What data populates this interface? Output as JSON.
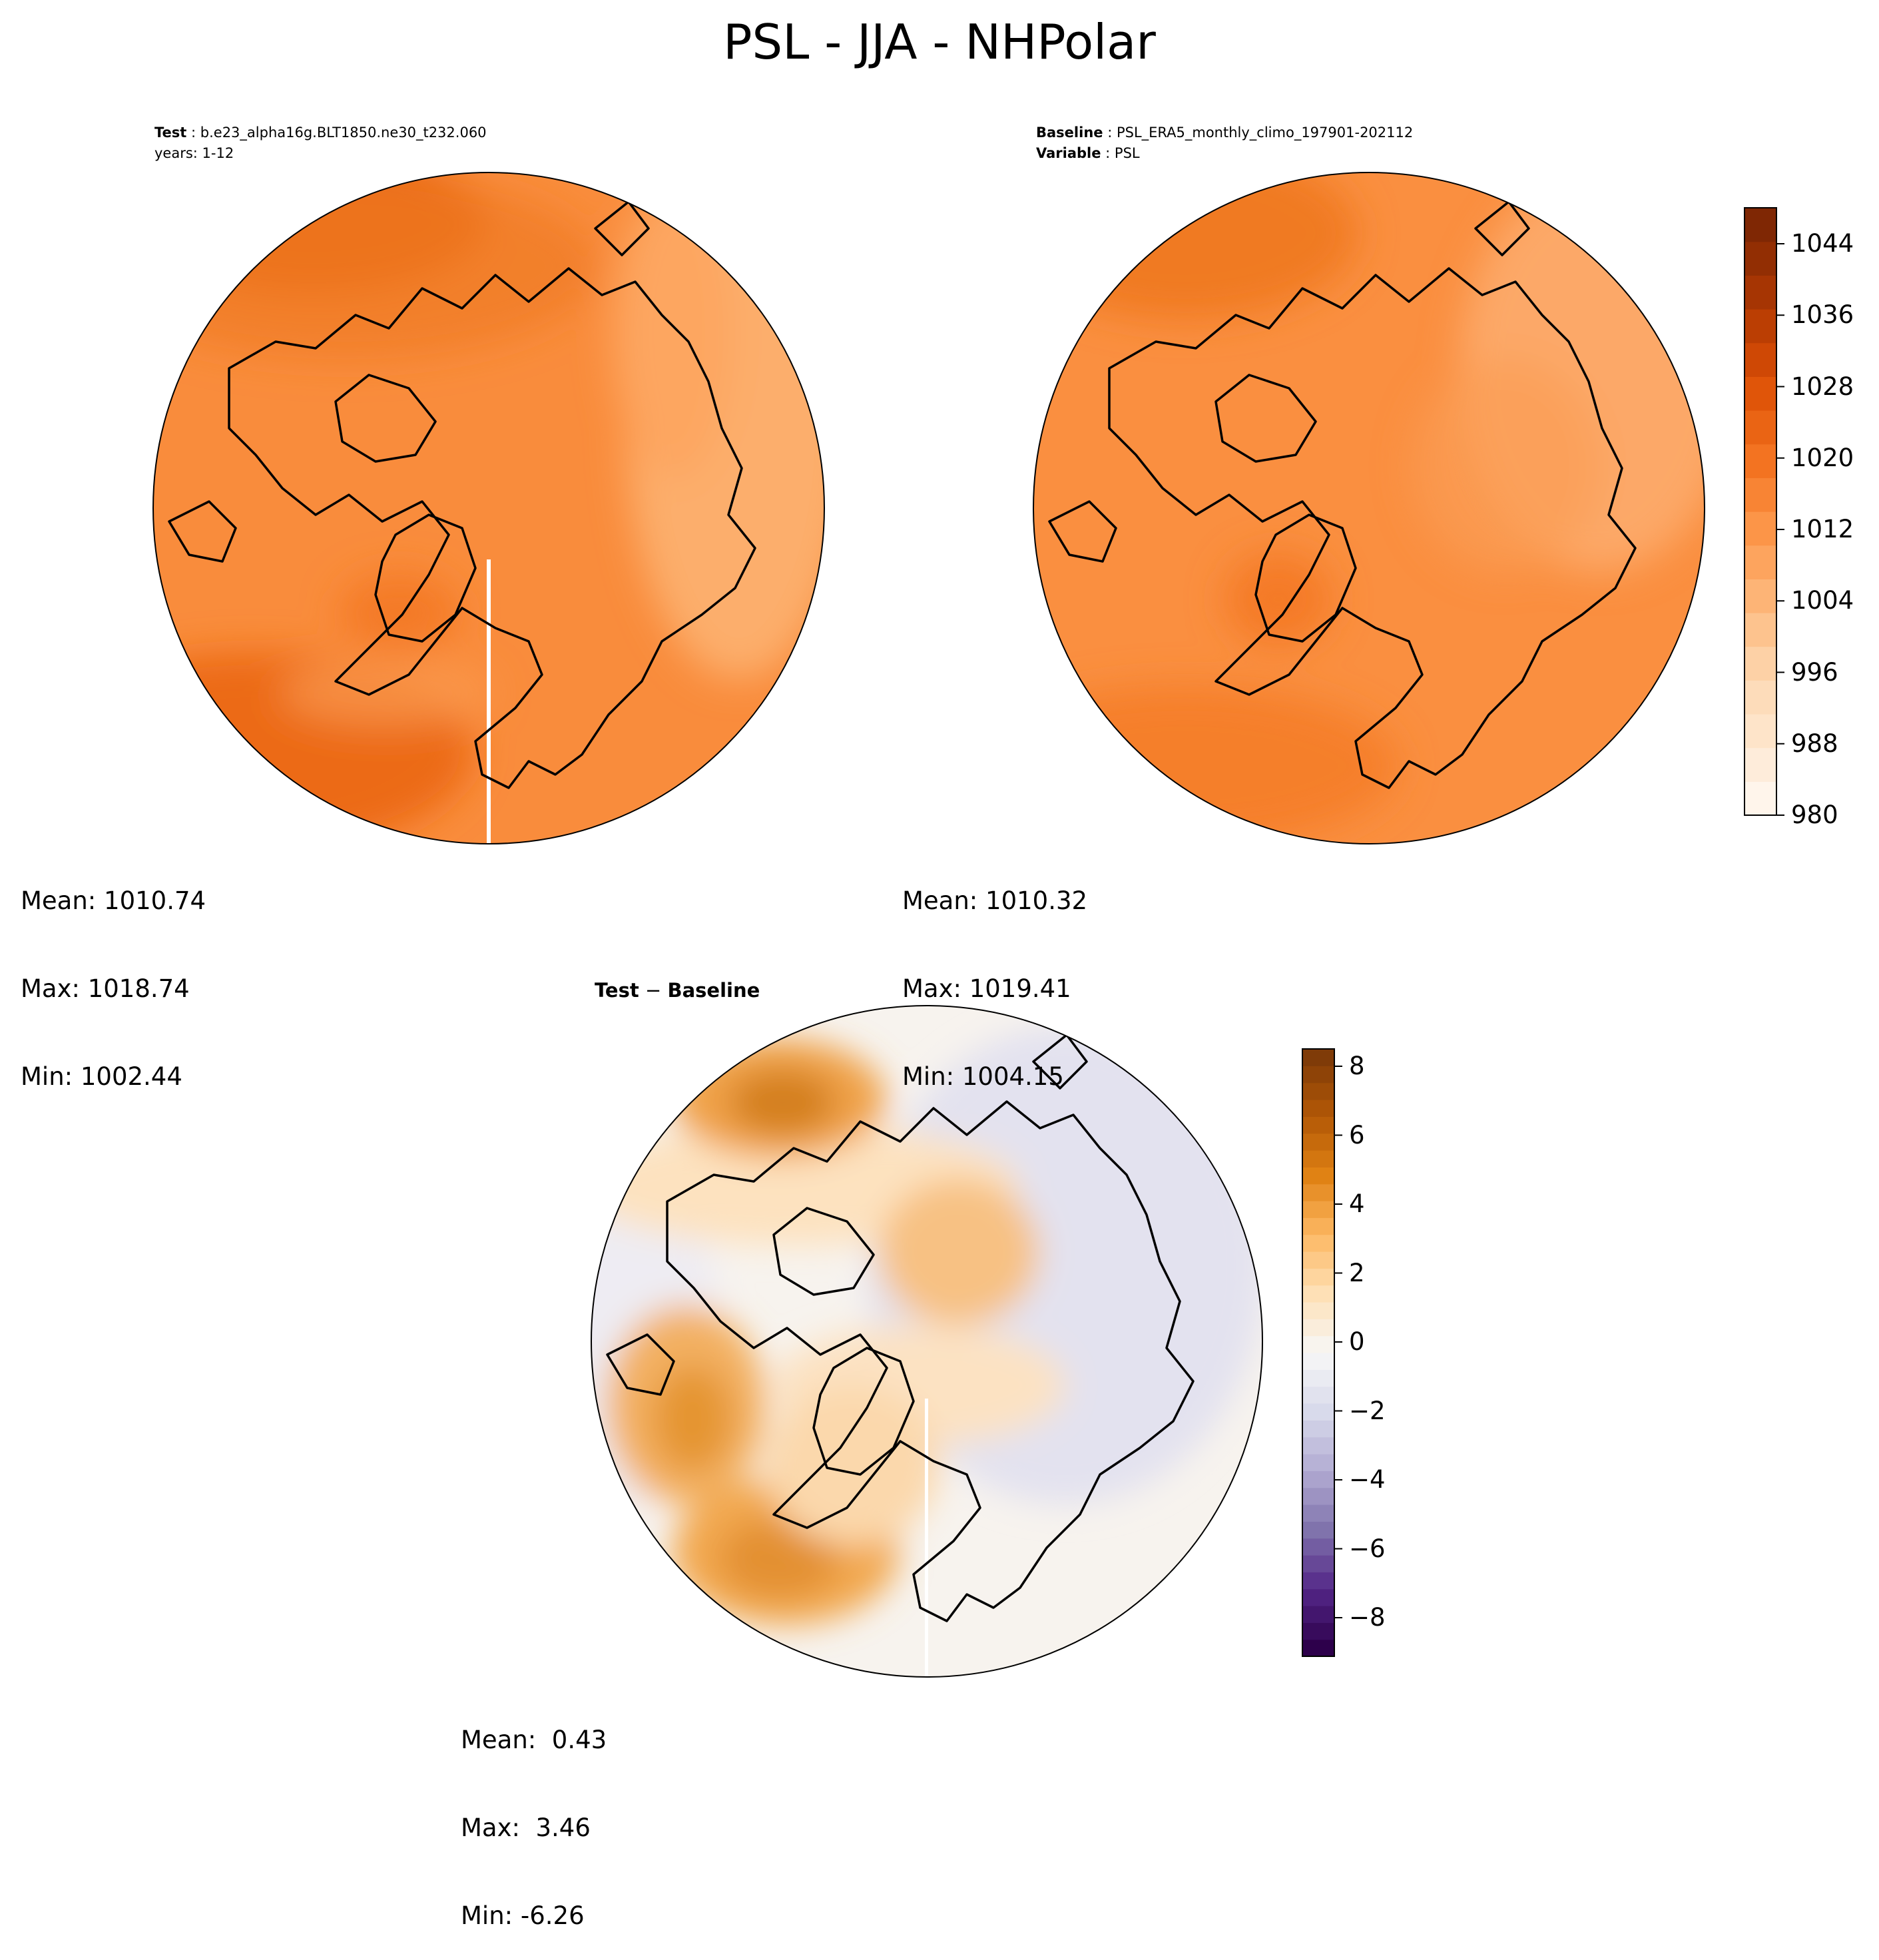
{
  "title": "PSL - JJA - NHPolar",
  "panels": {
    "test": {
      "label_key": "Test",
      "label_value": "b.e23_alpha16g.BLT1850.ne30_t232.060",
      "years": "years: 1-12",
      "stats": {
        "mean": "Mean: 1010.74",
        "max": "Max: 1018.74",
        "min": "Min: 1002.44"
      }
    },
    "baseline": {
      "label_key": "Baseline",
      "label_value": "PSL_ERA5_monthly_climo_197901-202112",
      "variable_key": "Variable",
      "variable_value": "PSL",
      "stats": {
        "mean": "Mean: 1010.32",
        "max": "Max: 1019.41",
        "min": "Min: 1004.15"
      }
    },
    "difference": {
      "title_a": "Test",
      "title_sep": " − ",
      "title_b": "Baseline",
      "stats": {
        "mean": "Mean:  0.43",
        "max": "Max:  3.46",
        "min": "Min: -6.26"
      }
    }
  },
  "colorbars": {
    "psl": {
      "ticks": [
        "1044",
        "1036",
        "1028",
        "1020",
        "1012",
        "1004",
        "996",
        "988",
        "980"
      ],
      "colormap": "Oranges",
      "colors": [
        "#fff5eb",
        "#fee6ce",
        "#fdd9b4",
        "#fdc28c",
        "#fda762",
        "#fb8d3d",
        "#f2701d",
        "#e25609",
        "#c44103",
        "#9f3303",
        "#7f2704"
      ]
    },
    "diff": {
      "ticks": [
        "8",
        "6",
        "4",
        "2",
        "0",
        "−2",
        "−4",
        "−6",
        "−8"
      ],
      "colormap": "PuOr_r",
      "colors": [
        "#2d004b",
        "#542788",
        "#8073ac",
        "#b2abd2",
        "#d8daeb",
        "#f7f7f7",
        "#fee0b6",
        "#fdb863",
        "#e08214",
        "#b35806",
        "#7f3b08"
      ]
    }
  },
  "map_colors": {
    "ocean_test": "#f98c3c",
    "ocean_baseline": "#fa8f40",
    "diff_neutral": "#f7f3ee",
    "coastline": "#000000"
  }
}
